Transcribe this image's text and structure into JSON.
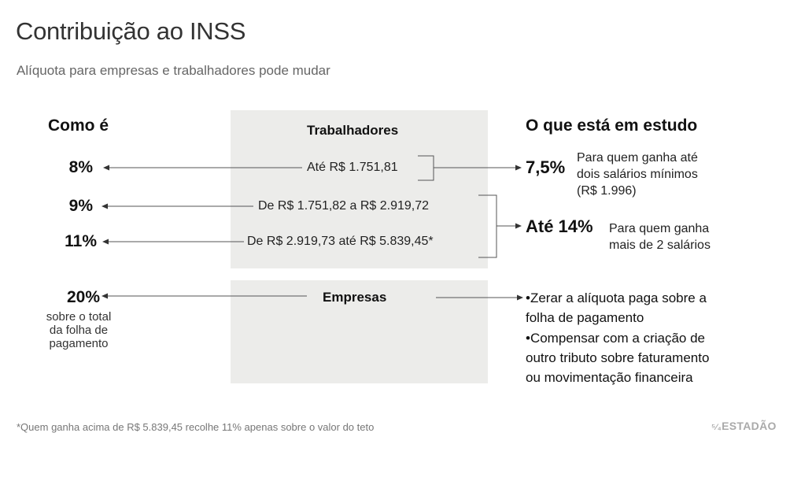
{
  "title": "Contribuição ao INSS",
  "subtitle": "Alíquota para empresas e trabalhadores pode mudar",
  "left_header": "Como é",
  "right_header": "O que está em estudo",
  "workers": {
    "header": "Trabalhadores",
    "rows": [
      {
        "current_rate": "8%",
        "range": "Até R$ 1.751,81"
      },
      {
        "current_rate": "9%",
        "range": "De R$ 1.751,82 a R$ 2.919,72"
      },
      {
        "current_rate": "11%",
        "range": "De R$ 2.919,73 até R$ 5.839,45*"
      }
    ],
    "proposals": [
      {
        "rate": "7,5%",
        "desc_lines": [
          "Para quem ganha até",
          "dois salários mínimos",
          "(R$ 1.996)"
        ]
      },
      {
        "rate": "Até 14%",
        "desc_lines": [
          "Para quem ganha",
          "mais de 2 salários"
        ]
      }
    ]
  },
  "companies": {
    "header": "Empresas",
    "current_rate": "20%",
    "current_note_lines": [
      "sobre o total",
      "da folha de",
      "pagamento"
    ],
    "proposals": [
      {
        "bullet": "•",
        "lines": [
          "Zerar a alíquota paga sobre a",
          "folha de pagamento"
        ]
      },
      {
        "bullet": "•",
        "lines": [
          "Compensar com a criação de",
          "outro tributo sobre faturamento",
          "ou movimentação financeira"
        ]
      }
    ]
  },
  "footnote": "*Quem ganha acima de R$ 5.839,45 recolhe 11% apenas sobre o valor do teto",
  "brand": "ESTADÃO",
  "colors": {
    "panel": "#ececea",
    "line": "#555555",
    "text": "#111111",
    "muted": "#777777"
  }
}
